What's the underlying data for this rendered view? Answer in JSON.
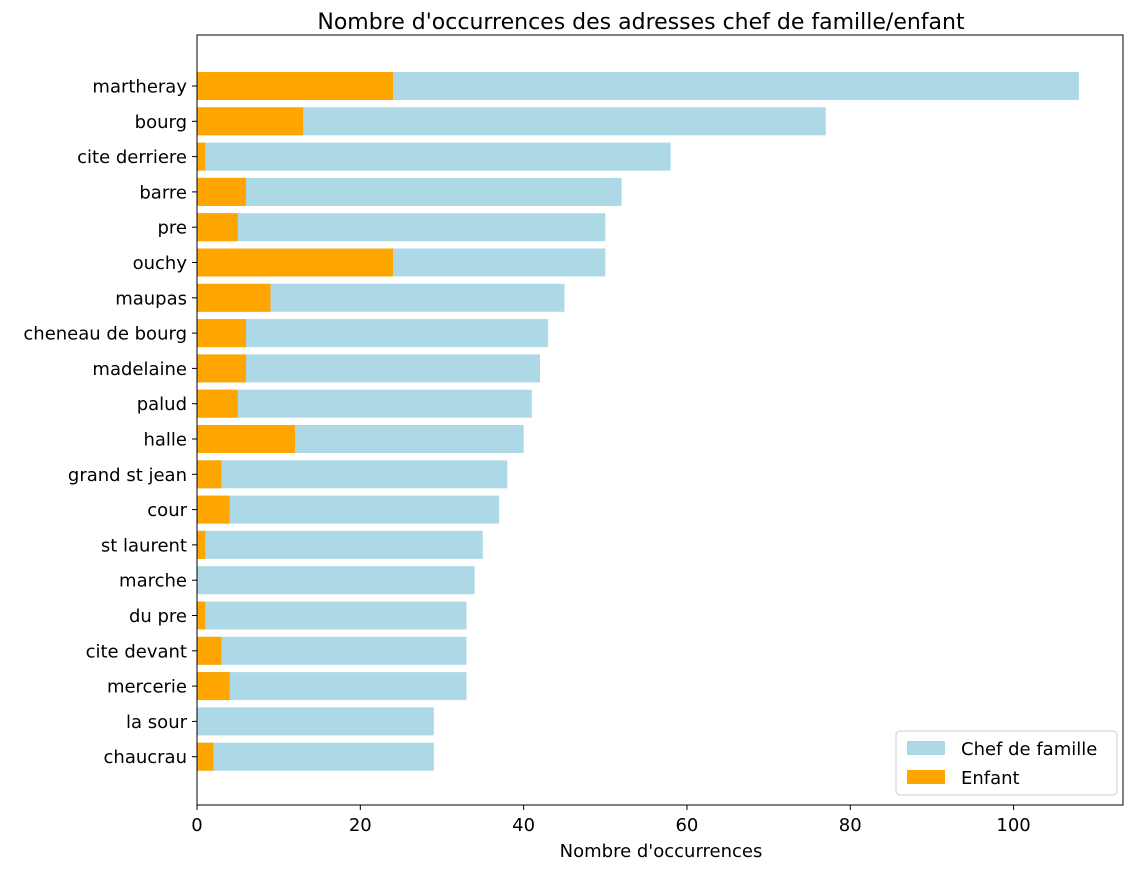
{
  "chart_data": {
    "type": "bar",
    "orientation": "horizontal",
    "stacking": "overlay",
    "title": "Nombre d'occurrences des adresses chef de famille/enfant",
    "xlabel": "Nombre d'occurrences",
    "ylabel": "",
    "xlim": [
      0,
      113.4
    ],
    "xticks": [
      0,
      20,
      40,
      60,
      80,
      100
    ],
    "grid": false,
    "legend_position": "lower right",
    "categories": [
      "martheray",
      "bourg",
      "cite derriere",
      "barre",
      "pre",
      "ouchy",
      "maupas",
      "cheneau de bourg",
      "madelaine",
      "palud",
      "halle",
      "grand st jean",
      "cour",
      "st laurent",
      "marche",
      "du pre",
      "cite devant",
      "mercerie",
      "la sour",
      "chaucrau"
    ],
    "series": [
      {
        "name": "Chef de famille",
        "color": "#add8e6",
        "values": [
          108,
          77,
          58,
          52,
          50,
          50,
          45,
          43,
          42,
          41,
          40,
          38,
          37,
          35,
          34,
          33,
          33,
          33,
          29,
          29
        ]
      },
      {
        "name": "Enfant",
        "color": "#ffa500",
        "values": [
          24,
          13,
          1,
          6,
          5,
          24,
          9,
          6,
          6,
          5,
          12,
          3,
          4,
          1,
          0,
          1,
          3,
          4,
          0,
          2
        ]
      }
    ]
  }
}
